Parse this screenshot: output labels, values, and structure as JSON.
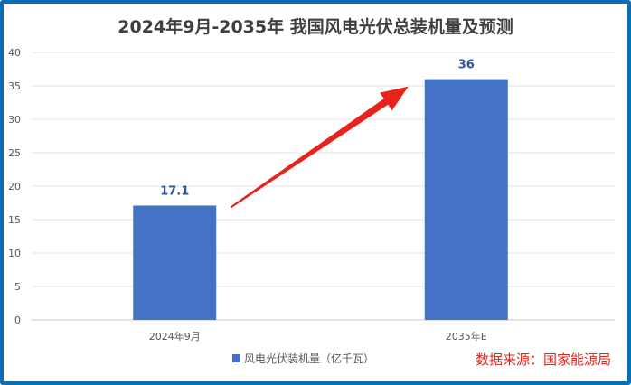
{
  "chart_data": {
    "type": "bar",
    "title": "2024年9月-2035年 我国风电光伏总装机量及预测",
    "categories": [
      "2024年9月",
      "2035年E"
    ],
    "series": [
      {
        "name": "风电光伏装机量（亿千瓦）",
        "values": [
          17.1,
          36
        ],
        "color": "#4472c4"
      }
    ],
    "data_labels": [
      "17.1",
      "36"
    ],
    "ylim": [
      0,
      40
    ],
    "yticks": [
      0,
      5,
      10,
      15,
      20,
      25,
      30,
      35,
      40
    ],
    "grid": true,
    "legend": "bottom",
    "annotation_arrow": {
      "from": "2024年9月",
      "to": "2035年E",
      "color": "#e8231b"
    },
    "source_note": "数据来源：国家能源局",
    "source_color": "#e8231b"
  }
}
